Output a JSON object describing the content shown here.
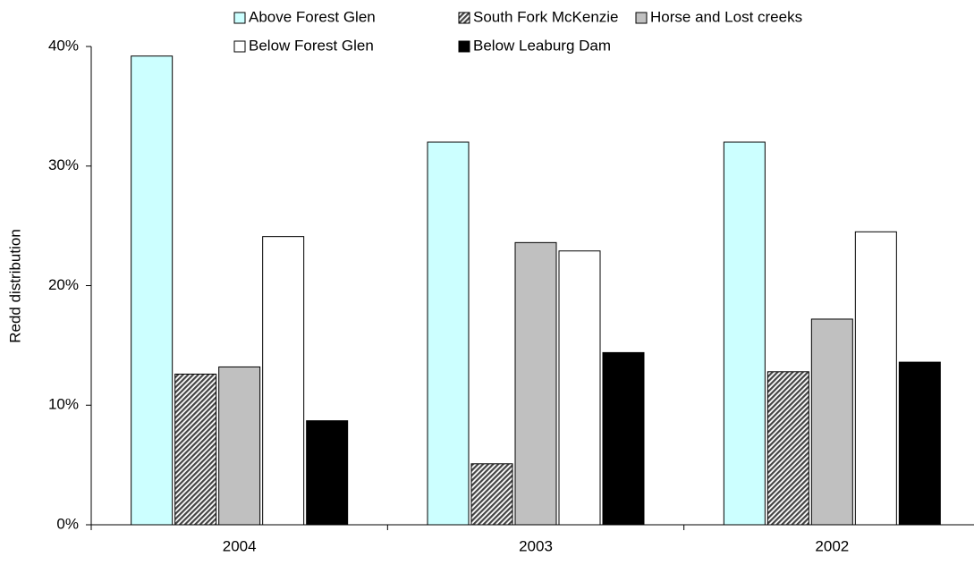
{
  "chart_data": {
    "type": "bar",
    "y_label": "Redd distribution",
    "categories": [
      "2004",
      "2003",
      "2002"
    ],
    "series": [
      {
        "name": "Above Forest Glen",
        "color": "#ccffff",
        "values": [
          39.2,
          32.0,
          32.0
        ]
      },
      {
        "name": "South Fork McKenzie",
        "color": "#888888",
        "pattern": "hatch",
        "values": [
          12.6,
          5.1,
          12.8
        ]
      },
      {
        "name": "Horse and Lost creeks",
        "color": "#c0c0c0",
        "values": [
          13.2,
          23.6,
          17.2
        ]
      },
      {
        "name": "Below Forest Glen",
        "color": "#ffffff",
        "values": [
          24.1,
          22.9,
          24.5
        ]
      },
      {
        "name": "Below Leaburg Dam",
        "color": "#000000",
        "values": [
          8.7,
          14.4,
          13.6
        ]
      }
    ],
    "ylim": [
      0,
      40
    ],
    "yticks": [
      {
        "value": 0,
        "label": "0%"
      },
      {
        "value": 10,
        "label": "10%"
      },
      {
        "value": 20,
        "label": "20%"
      },
      {
        "value": 30,
        "label": "30%"
      },
      {
        "value": 40,
        "label": "40%"
      }
    ],
    "grid": false
  }
}
